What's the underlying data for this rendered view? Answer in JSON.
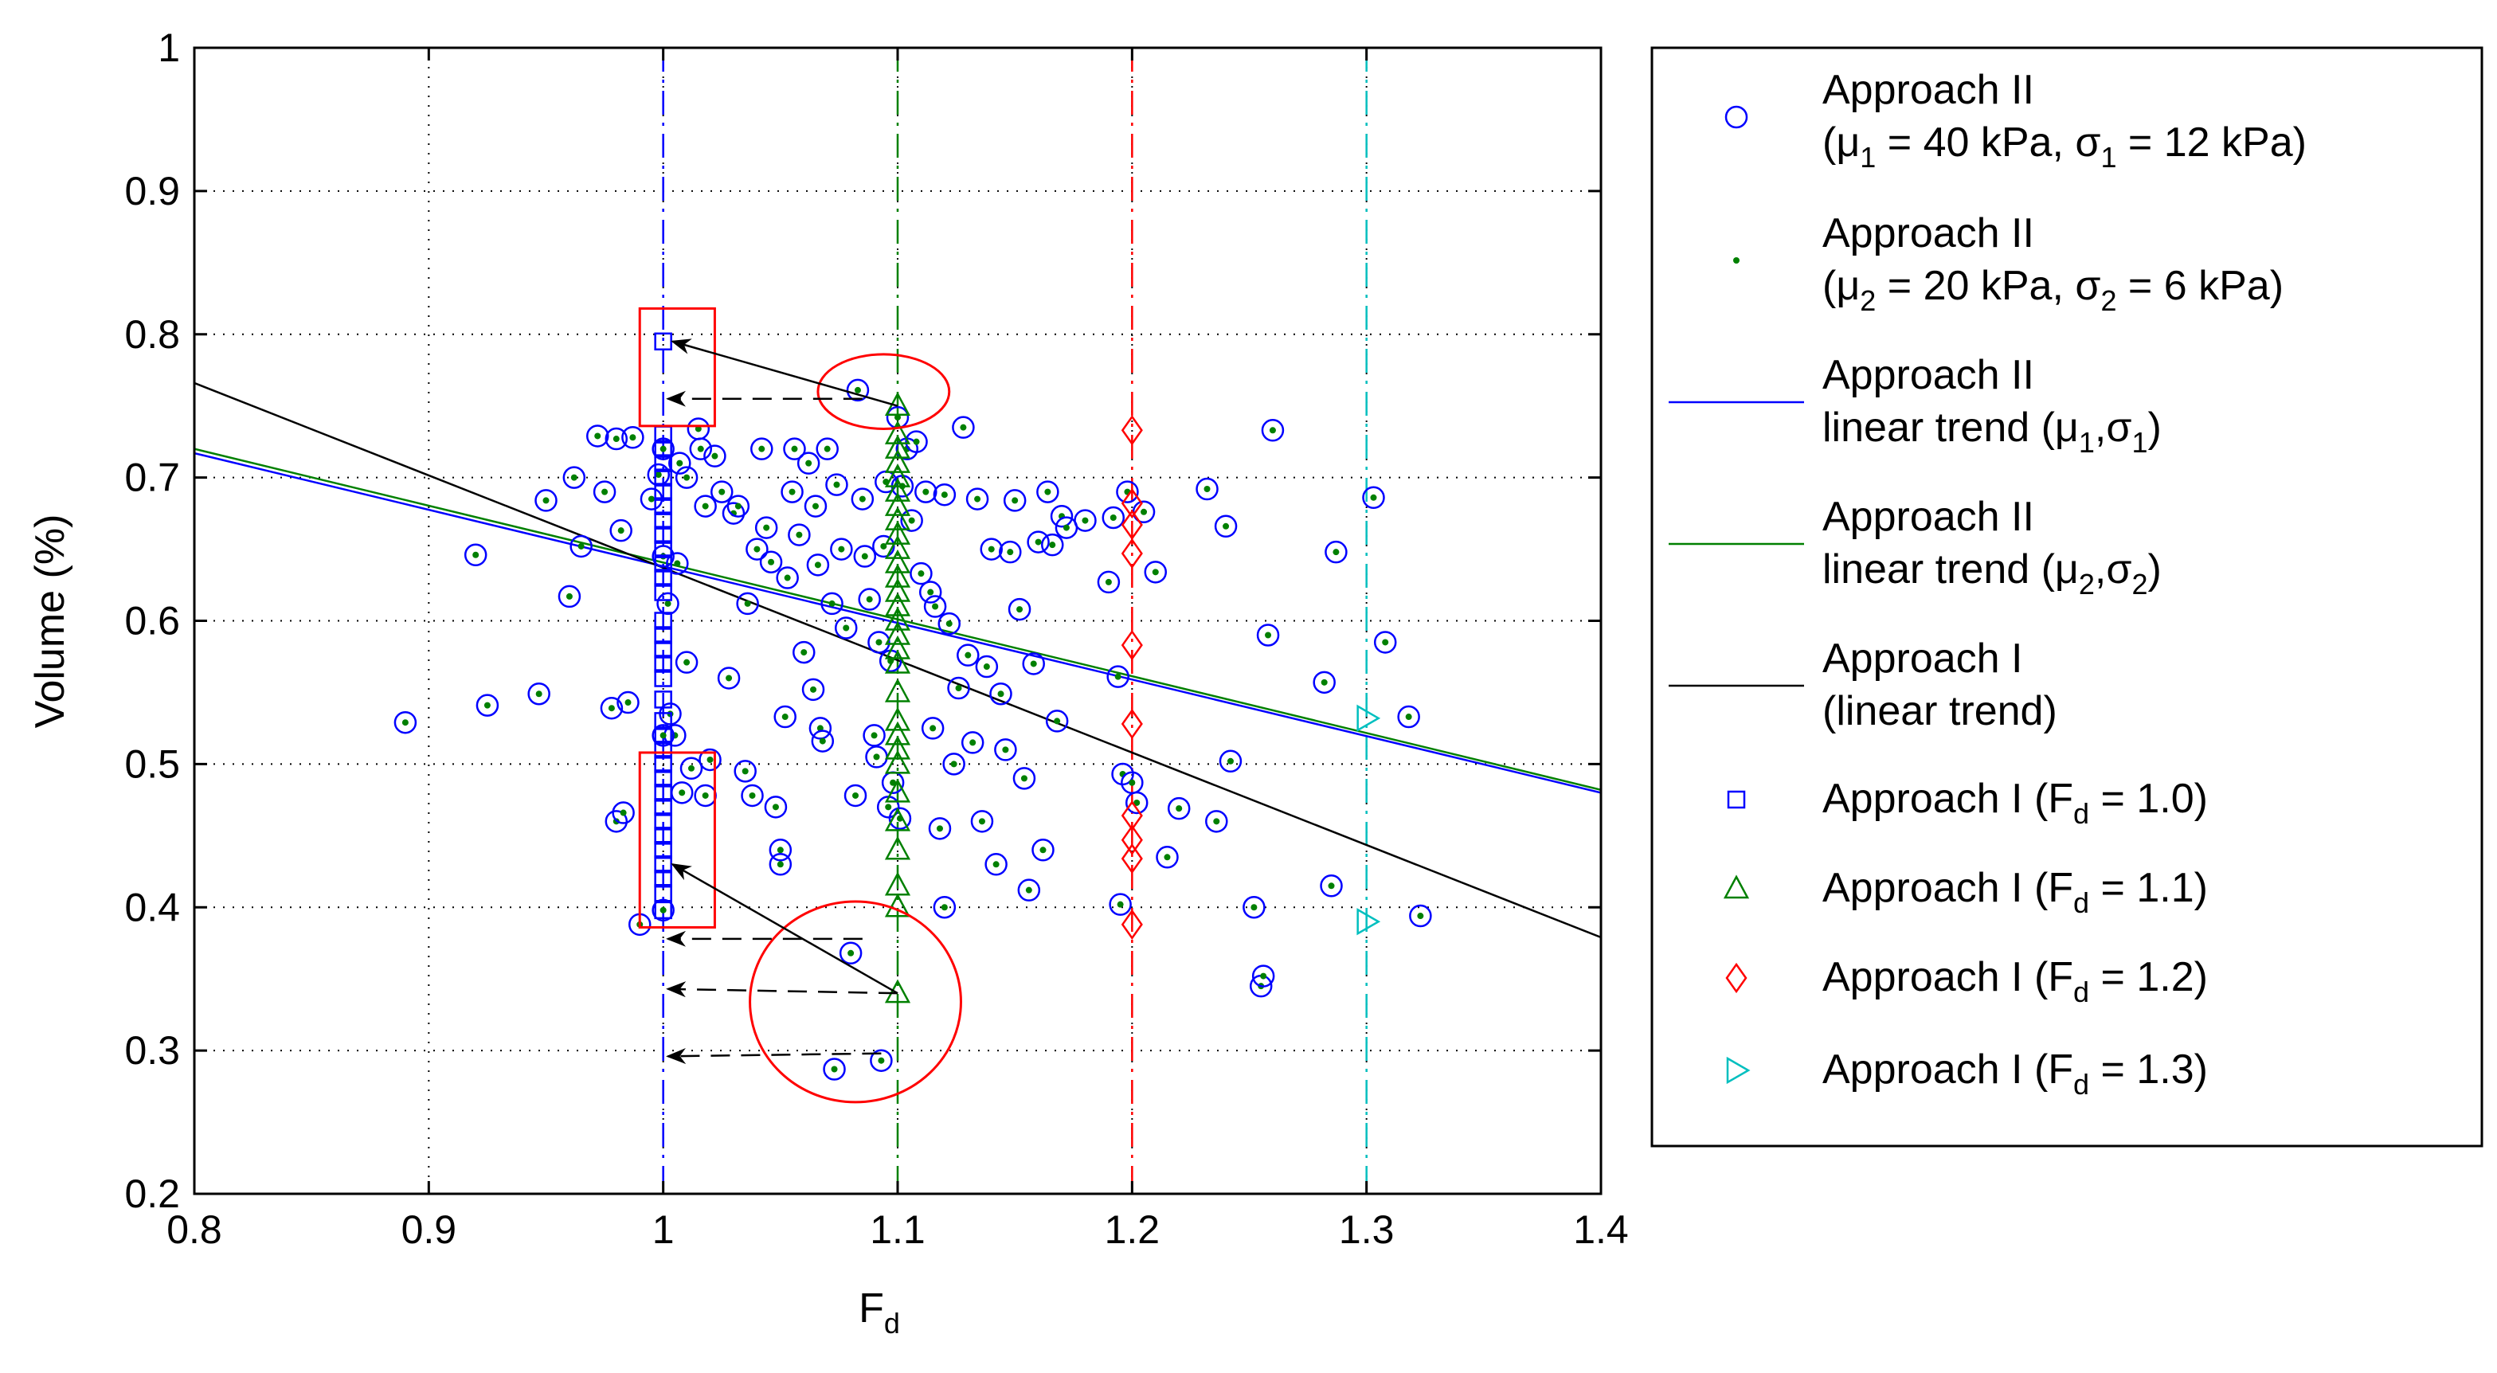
{
  "chart_data": {
    "type": "scatter",
    "xlabel": "F",
    "xlabel_sub": "d",
    "ylabel": "Volume (%)",
    "xlim": [
      0.8,
      1.4
    ],
    "ylim": [
      0.2,
      1.0
    ],
    "x_ticks": [
      0.8,
      0.9,
      1.0,
      1.1,
      1.2,
      1.3,
      1.4
    ],
    "x_tick_labels": [
      "0.8",
      "0.9",
      "1",
      "1.1",
      "1.2",
      "1.3",
      "1.4"
    ],
    "y_ticks": [
      0.2,
      0.3,
      0.4,
      0.5,
      0.6,
      0.7,
      0.8,
      0.9,
      1.0
    ],
    "y_tick_labels": [
      "0.2",
      "0.3",
      "0.4",
      "0.5",
      "0.6",
      "0.7",
      "0.8",
      "0.9",
      "1"
    ],
    "grid": true,
    "legend_position": "right",
    "colors": {
      "blue": "#0000ff",
      "green": "#008000",
      "red": "#ff0000",
      "cyan": "#00bfbf",
      "black": "#000000"
    },
    "legend": [
      {
        "key": "circle",
        "color": "#0000ff",
        "lines": [
          {
            "t": "Approach II"
          },
          {
            "t": "(μ",
            "sub": "1",
            "t2": " = 40 kPa, σ",
            "sub2": "1",
            "t3": " = 12 kPa)"
          }
        ]
      },
      {
        "key": "dot",
        "color": "#008000",
        "lines": [
          {
            "t": "Approach II"
          },
          {
            "t": "(μ",
            "sub": "2",
            "t2": " = 20 kPa, σ",
            "sub2": "2",
            "t3": " = 6 kPa)"
          }
        ]
      },
      {
        "key": "line",
        "color": "#0000ff",
        "lines": [
          {
            "t": "Approach II"
          },
          {
            "t": "linear trend (μ",
            "sub": "1",
            "t2": ",σ",
            "sub2": "1",
            "t3": ")"
          }
        ]
      },
      {
        "key": "line",
        "color": "#008000",
        "lines": [
          {
            "t": "Approach II"
          },
          {
            "t": "linear trend (μ",
            "sub": "2",
            "t2": ",σ",
            "sub2": "2",
            "t3": ")"
          }
        ]
      },
      {
        "key": "line",
        "color": "#000000",
        "lines": [
          {
            "t": "Approach I"
          },
          {
            "t": "(linear trend)"
          }
        ]
      },
      {
        "key": "square",
        "color": "#0000ff",
        "lines": [
          {
            "t": "Approach I (F",
            "sub": "d",
            "t2": " = 1.0)"
          }
        ]
      },
      {
        "key": "triangle-up",
        "color": "#008000",
        "lines": [
          {
            "t": "Approach I (F",
            "sub": "d",
            "t2": " = 1.1)"
          }
        ]
      },
      {
        "key": "diamond",
        "color": "#ff0000",
        "lines": [
          {
            "t": "Approach I (F",
            "sub": "d",
            "t2": " = 1.2)"
          }
        ]
      },
      {
        "key": "triangle-right",
        "color": "#00bfbf",
        "lines": [
          {
            "t": "Approach I (F",
            "sub": "d",
            "t2": " = 1.3)"
          }
        ]
      }
    ],
    "vlines": [
      {
        "x": 1.0,
        "color": "#0000ff"
      },
      {
        "x": 1.1,
        "color": "#008000"
      },
      {
        "x": 1.2,
        "color": "#ff0000"
      },
      {
        "x": 1.3,
        "color": "#00bfbf"
      }
    ],
    "trend_lines": [
      {
        "name": "Approach II linear trend (mu1,sigma1)",
        "color": "#0000ff",
        "points": [
          [
            0.8,
            0.717
          ],
          [
            1.4,
            0.48
          ]
        ]
      },
      {
        "name": "Approach II linear trend (mu2,sigma2)",
        "color": "#008000",
        "points": [
          [
            0.8,
            0.72
          ],
          [
            1.4,
            0.482
          ]
        ]
      },
      {
        "name": "Approach I (linear trend)",
        "color": "#000000",
        "points": [
          [
            0.8,
            0.766
          ],
          [
            1.4,
            0.379
          ]
        ]
      }
    ],
    "approach2_points": [
      [
        0.89,
        0.529
      ],
      [
        0.92,
        0.646
      ],
      [
        0.925,
        0.541
      ],
      [
        0.947,
        0.549
      ],
      [
        0.95,
        0.684
      ],
      [
        0.96,
        0.617
      ],
      [
        0.962,
        0.7
      ],
      [
        0.965,
        0.652
      ],
      [
        0.972,
        0.729
      ],
      [
        0.975,
        0.69
      ],
      [
        0.978,
        0.539
      ],
      [
        0.98,
        0.727
      ],
      [
        0.98,
        0.46
      ],
      [
        0.982,
        0.663
      ],
      [
        0.983,
        0.466
      ],
      [
        0.985,
        0.543
      ],
      [
        0.987,
        0.728
      ],
      [
        0.99,
        0.388
      ],
      [
        0.995,
        0.685
      ],
      [
        0.998,
        0.702
      ],
      [
        1.0,
        0.645
      ],
      [
        1.002,
        0.612
      ],
      [
        1.003,
        0.535
      ],
      [
        1.005,
        0.52
      ],
      [
        1.006,
        0.64
      ],
      [
        1.007,
        0.71
      ],
      [
        1.008,
        0.48
      ],
      [
        1.01,
        0.7
      ],
      [
        1.01,
        0.571
      ],
      [
        1.012,
        0.497
      ],
      [
        1.015,
        0.734
      ],
      [
        1.016,
        0.72
      ],
      [
        1.018,
        0.68
      ],
      [
        1.018,
        0.478
      ],
      [
        1.02,
        0.503
      ],
      [
        1.022,
        0.715
      ],
      [
        1.025,
        0.69
      ],
      [
        1.028,
        0.56
      ],
      [
        1.03,
        0.675
      ],
      [
        1.032,
        0.68
      ],
      [
        1.035,
        0.495
      ],
      [
        1.036,
        0.612
      ],
      [
        1.038,
        0.478
      ],
      [
        1.04,
        0.65
      ],
      [
        1.042,
        0.72
      ],
      [
        1.044,
        0.665
      ],
      [
        1.046,
        0.641
      ],
      [
        1.048,
        0.47
      ],
      [
        1.05,
        0.44
      ],
      [
        1.05,
        0.43
      ],
      [
        1.052,
        0.533
      ],
      [
        1.053,
        0.63
      ],
      [
        1.055,
        0.69
      ],
      [
        1.056,
        0.72
      ],
      [
        1.058,
        0.66
      ],
      [
        1.06,
        0.578
      ],
      [
        1.062,
        0.71
      ],
      [
        1.064,
        0.552
      ],
      [
        1.065,
        0.68
      ],
      [
        1.066,
        0.639
      ],
      [
        1.067,
        0.525
      ],
      [
        1.068,
        0.516
      ],
      [
        1.07,
        0.72
      ],
      [
        1.072,
        0.612
      ],
      [
        1.074,
        0.695
      ],
      [
        1.076,
        0.65
      ],
      [
        1.078,
        0.595
      ],
      [
        1.08,
        0.368
      ],
      [
        1.082,
        0.478
      ],
      [
        1.083,
        0.761
      ],
      [
        1.085,
        0.685
      ],
      [
        1.086,
        0.645
      ],
      [
        1.088,
        0.615
      ],
      [
        1.09,
        0.52
      ],
      [
        1.091,
        0.505
      ],
      [
        1.092,
        0.585
      ],
      [
        1.093,
        0.293
      ],
      [
        1.094,
        0.652
      ],
      [
        1.095,
        0.697
      ],
      [
        1.096,
        0.47
      ],
      [
        1.097,
        0.572
      ],
      [
        1.098,
        0.487
      ],
      [
        1.1,
        0.742
      ],
      [
        1.101,
        0.462
      ],
      [
        1.102,
        0.694
      ],
      [
        1.104,
        0.72
      ],
      [
        1.106,
        0.67
      ],
      [
        1.108,
        0.725
      ],
      [
        1.11,
        0.633
      ],
      [
        1.112,
        0.69
      ],
      [
        1.114,
        0.62
      ],
      [
        1.115,
        0.525
      ],
      [
        1.116,
        0.61
      ],
      [
        1.118,
        0.455
      ],
      [
        1.12,
        0.688
      ],
      [
        1.12,
        0.4
      ],
      [
        1.122,
        0.598
      ],
      [
        1.124,
        0.5
      ],
      [
        1.126,
        0.553
      ],
      [
        1.128,
        0.735
      ],
      [
        1.13,
        0.576
      ],
      [
        1.132,
        0.515
      ],
      [
        1.134,
        0.685
      ],
      [
        1.136,
        0.46
      ],
      [
        1.138,
        0.568
      ],
      [
        1.14,
        0.65
      ],
      [
        1.142,
        0.43
      ],
      [
        1.144,
        0.549
      ],
      [
        1.146,
        0.51
      ],
      [
        1.148,
        0.648
      ],
      [
        1.15,
        0.684
      ],
      [
        1.152,
        0.608
      ],
      [
        1.154,
        0.49
      ],
      [
        1.156,
        0.412
      ],
      [
        1.158,
        0.57
      ],
      [
        1.16,
        0.655
      ],
      [
        1.162,
        0.44
      ],
      [
        1.164,
        0.69
      ],
      [
        1.166,
        0.653
      ],
      [
        1.168,
        0.53
      ],
      [
        1.17,
        0.673
      ],
      [
        1.172,
        0.665
      ],
      [
        1.18,
        0.67
      ],
      [
        1.19,
        0.627
      ],
      [
        1.192,
        0.672
      ],
      [
        1.194,
        0.561
      ],
      [
        1.195,
        0.402
      ],
      [
        1.196,
        0.493
      ],
      [
        1.198,
        0.69
      ],
      [
        1.2,
        0.487
      ],
      [
        1.202,
        0.473
      ],
      [
        1.205,
        0.676
      ],
      [
        1.21,
        0.634
      ],
      [
        1.215,
        0.435
      ],
      [
        1.22,
        0.469
      ],
      [
        1.232,
        0.692
      ],
      [
        1.236,
        0.46
      ],
      [
        1.24,
        0.666
      ],
      [
        1.242,
        0.502
      ],
      [
        1.252,
        0.4
      ],
      [
        1.255,
        0.345
      ],
      [
        1.256,
        0.352
      ],
      [
        1.258,
        0.59
      ],
      [
        1.26,
        0.733
      ],
      [
        1.282,
        0.557
      ],
      [
        1.285,
        0.415
      ],
      [
        1.287,
        0.648
      ],
      [
        1.303,
        0.686
      ],
      [
        1.308,
        0.585
      ],
      [
        1.318,
        0.533
      ],
      [
        1.323,
        0.394
      ],
      [
        1.073,
        0.287
      ],
      [
        1.0,
        0.398
      ],
      [
        1.0,
        0.72
      ],
      [
        1.0,
        0.52
      ]
    ],
    "approach1_fd10": [
      0.398,
      0.41,
      0.42,
      0.43,
      0.44,
      0.45,
      0.46,
      0.47,
      0.48,
      0.49,
      0.5,
      0.51,
      0.52,
      0.53,
      0.545,
      0.56,
      0.57,
      0.58,
      0.59,
      0.6,
      0.62,
      0.63,
      0.64,
      0.65,
      0.66,
      0.67,
      0.68,
      0.69,
      0.7,
      0.71,
      0.72,
      0.73,
      0.795
    ],
    "approach1_fd11": [
      0.34,
      0.4,
      0.415,
      0.44,
      0.46,
      0.48,
      0.5,
      0.51,
      0.52,
      0.53,
      0.55,
      0.57,
      0.58,
      0.59,
      0.6,
      0.61,
      0.62,
      0.63,
      0.64,
      0.65,
      0.66,
      0.67,
      0.68,
      0.69,
      0.7,
      0.71,
      0.72,
      0.73,
      0.75
    ],
    "approach1_fd12": [
      0.388,
      0.434,
      0.447,
      0.464,
      0.528,
      0.583,
      0.647,
      0.667,
      0.682,
      0.733
    ],
    "approach1_fd13": [
      0.39,
      0.532
    ],
    "annotations": {
      "red_rects": [
        {
          "x0": 0.99,
          "x1": 1.022,
          "y0": 0.736,
          "y1": 0.818
        },
        {
          "x0": 0.99,
          "x1": 1.022,
          "y0": 0.386,
          "y1": 0.508
        }
      ],
      "red_ellipses": [
        {
          "cx": 1.094,
          "cy": 0.76,
          "rx": 0.028,
          "ry": 0.026
        },
        {
          "cx": 1.082,
          "cy": 0.334,
          "rx": 0.045,
          "ry": 0.07
        }
      ],
      "solid_arrows": [
        {
          "from": [
            1.1,
            0.75
          ],
          "to": [
            1.004,
            0.795
          ]
        },
        {
          "from": [
            1.1,
            0.34
          ],
          "to": [
            1.004,
            0.43
          ]
        }
      ],
      "dashed_arrows": [
        {
          "from": [
            1.085,
            0.755
          ],
          "to": [
            1.002,
            0.755
          ]
        },
        {
          "from": [
            1.085,
            0.378
          ],
          "to": [
            1.002,
            0.378
          ]
        },
        {
          "from": [
            1.1,
            0.34
          ],
          "to": [
            1.002,
            0.343
          ]
        },
        {
          "from": [
            1.093,
            0.298
          ],
          "to": [
            1.002,
            0.296
          ]
        }
      ]
    }
  }
}
